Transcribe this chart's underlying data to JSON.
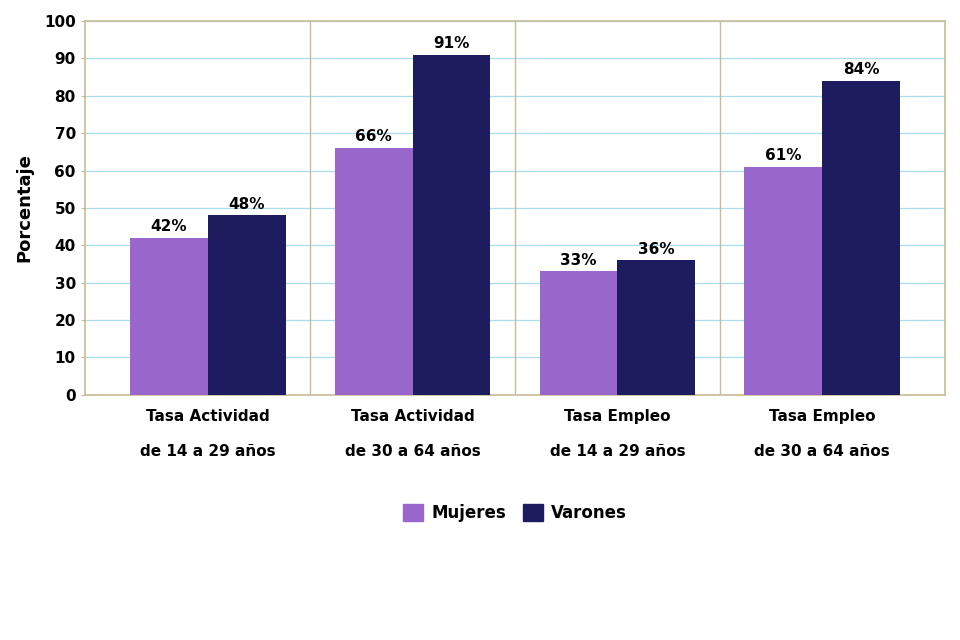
{
  "categories": [
    "Tasa Actividad\n\nde 14 a 29 años",
    "Tasa Actividad\n\nde 30 a 64 años",
    "Tasa Empleo\n\nde 14 a 29 años",
    "Tasa Empleo\n\nde 30 a 64 años"
  ],
  "mujeres": [
    42,
    66,
    33,
    61
  ],
  "varones": [
    48,
    91,
    36,
    84
  ],
  "mujeres_color": "#9966CC",
  "varones_color": "#1C1C5E",
  "ylabel": "Porcentaje",
  "ylim": [
    0,
    100
  ],
  "yticks": [
    0,
    10,
    20,
    30,
    40,
    50,
    60,
    70,
    80,
    90,
    100
  ],
  "legend_mujeres": "Mujeres",
  "legend_varones": "Varones",
  "bar_width": 0.38,
  "plot_bg_color": "#FFFFFF",
  "fig_bg_color": "#FFFFFF",
  "grid_color": "#AADDEE",
  "border_color": "#C8BC96",
  "label_fontsize": 11,
  "ylabel_fontsize": 13,
  "tick_fontsize": 11,
  "annot_fontsize": 11
}
